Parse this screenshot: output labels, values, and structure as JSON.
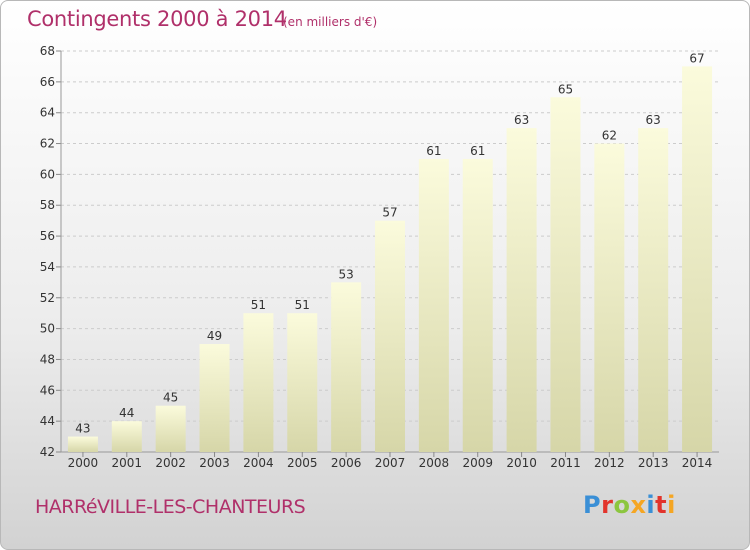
{
  "header": {
    "title": "Contingents 2000 à 2014",
    "subtitle": "(en milliers d'€)"
  },
  "footer": {
    "commune": "HARRéVILLE-LES-CHANTEURS",
    "logo": "Proxiti",
    "logo_colors": [
      "#3a8fd6",
      "#e2342c",
      "#8cc63f",
      "#f5a623",
      "#3a8fd6",
      "#e2342c",
      "#f5a623"
    ]
  },
  "colors": {
    "title": "#b0306a",
    "bar_top": "#fbfbdc",
    "bar_bottom": "#d6d6a8",
    "grid": "#cccccc",
    "axis_text": "#333333"
  },
  "chart_data": {
    "type": "bar",
    "title": "Contingents 2000 à 2014",
    "subtitle": "(en milliers d'€)",
    "categories": [
      "2000",
      "2001",
      "2002",
      "2003",
      "2004",
      "2005",
      "2006",
      "2007",
      "2008",
      "2009",
      "2010",
      "2011",
      "2012",
      "2013",
      "2014"
    ],
    "values": [
      43,
      44,
      45,
      49,
      51,
      51,
      53,
      57,
      61,
      61,
      63,
      65,
      62,
      63,
      67
    ],
    "value_labels": [
      "43",
      "44",
      "45",
      "49",
      "51",
      "51",
      "53",
      "57",
      "61",
      "61",
      "63",
      "65",
      "62",
      "63",
      "67"
    ],
    "ylim": [
      42,
      68
    ],
    "yticks": [
      42,
      44,
      46,
      48,
      50,
      52,
      54,
      56,
      58,
      60,
      62,
      64,
      66,
      68
    ],
    "ytick_labels": [
      "42",
      "44",
      "46",
      "48",
      "50",
      "52",
      "54",
      "56",
      "58",
      "60",
      "62",
      "64",
      "66",
      "68"
    ],
    "grid": true,
    "xlabel": "",
    "ylabel": ""
  }
}
